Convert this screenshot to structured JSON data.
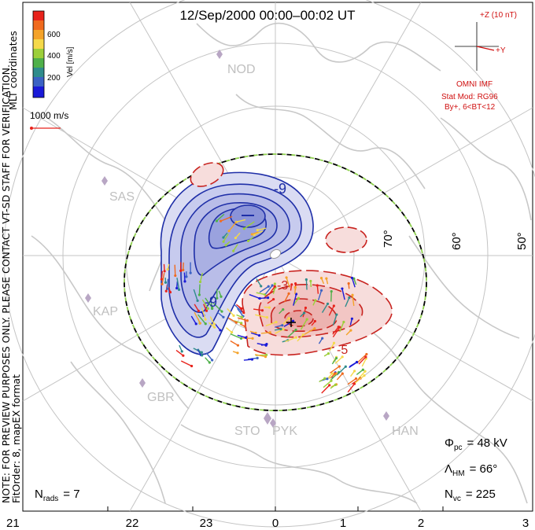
{
  "title": "12/Sep/2000 00:00–00:02 UT",
  "side_note_line1": "NOTE: FOR PREVIEW PURPOSES ONLY. PLEASE CONTACT VT-SD STAFF FOR VERIFICATION.",
  "side_note_line2": "FitOrder: 8,  mapEX format",
  "coordinate_label": "MLT coordinates",
  "color_scale": {
    "label": "Vel [m/s]",
    "ticks": [
      "600",
      "400",
      "200"
    ],
    "colors": [
      "#e8231c",
      "#f06a1e",
      "#f4a32a",
      "#f5d94a",
      "#9ccf3a",
      "#4fb04a",
      "#2f8c8c",
      "#3b62c4",
      "#1a1ad8"
    ]
  },
  "reference_vector_label": "1000 m/s",
  "imf": {
    "z_label": "+Z (10 nT)",
    "y_label": "+Y",
    "source": "OMNI IMF",
    "model_line1": "Stat Mod: RG96",
    "model_line2": "By+, 6<BT<12"
  },
  "latitude_labels": [
    "70°",
    "60°",
    "50°"
  ],
  "stations": [
    "NOD",
    "SAS",
    "KAP",
    "GBR",
    "STO",
    "PYK",
    "HAN"
  ],
  "contour_labels": [
    "-9",
    "-9",
    "-3",
    "-5"
  ],
  "stats": {
    "phi_label": "Φ",
    "phi_sub": "pc",
    "phi_value": "= 48 kV",
    "lambda_label": "Λ",
    "lambda_sub": "HM",
    "lambda_value": "= 66°",
    "nvc_label": "N",
    "nvc_sub": "vc",
    "nvc_value": "= 225",
    "nrads_label": "N",
    "nrads_sub": "rads",
    "nrads_value": "= 7"
  },
  "mlt_axis": [
    "21",
    "22",
    "23",
    "0",
    "1",
    "2",
    "3"
  ],
  "colors": {
    "negative_fill": "#b9bde8",
    "negative_line": "#1f2fa8",
    "positive_fill": "#f2c6c4",
    "positive_line": "#c8231f",
    "boundary_green": "#8fd14f",
    "coast": "#c8c8c8",
    "grid": "#c4c4c4"
  }
}
